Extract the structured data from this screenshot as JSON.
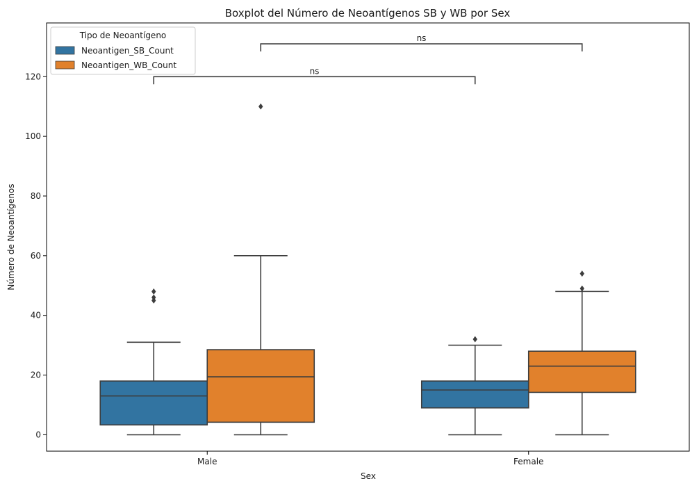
{
  "chart_data": {
    "type": "boxplot",
    "title": "Boxplot del Número de Neoantígenos SB y WB por Sex",
    "xlabel": "Sex",
    "ylabel": "Número de Neoantígenos",
    "categories": [
      "Male",
      "Female"
    ],
    "ylim": [
      -5.5,
      138
    ],
    "yticks": [
      0,
      20,
      40,
      60,
      80,
      100,
      120
    ],
    "grid": false,
    "legend": {
      "title": "Tipo de Neoantígeno",
      "placement": "top-left",
      "entries": [
        "Neoantigen_SB_Count",
        "Neoantigen_WB_Count"
      ]
    },
    "colors": {
      "Neoantigen_SB_Count": "#3274a1",
      "Neoantigen_WB_Count": "#e1812c",
      "lines": "#3d3d3d"
    },
    "series": [
      {
        "name": "Neoantigen_SB_Count",
        "boxes": [
          {
            "category": "Male",
            "whisker_low": 0,
            "q1": 3.3,
            "median": 13,
            "q3": 18,
            "whisker_high": 31,
            "outliers": [
              45,
              46,
              48
            ]
          },
          {
            "category": "Female",
            "whisker_low": 0,
            "q1": 9,
            "median": 15,
            "q3": 18,
            "whisker_high": 30,
            "outliers": [
              32
            ]
          }
        ]
      },
      {
        "name": "Neoantigen_WB_Count",
        "boxes": [
          {
            "category": "Male",
            "whisker_low": 0,
            "q1": 4.2,
            "median": 19.4,
            "q3": 28.5,
            "whisker_high": 60,
            "outliers": [
              110
            ]
          },
          {
            "category": "Female",
            "whisker_low": 0,
            "q1": 14.2,
            "median": 23,
            "q3": 28,
            "whisker_high": 48,
            "outliers": [
              49,
              54
            ]
          }
        ]
      }
    ],
    "annotations": [
      {
        "text": "ns",
        "from": {
          "category": "Male",
          "series": "Neoantigen_SB_Count"
        },
        "to": {
          "category": "Female",
          "series": "Neoantigen_SB_Count"
        },
        "y": 120
      },
      {
        "text": "ns",
        "from": {
          "category": "Male",
          "series": "Neoantigen_WB_Count"
        },
        "to": {
          "category": "Female",
          "series": "Neoantigen_WB_Count"
        },
        "y": 131
      }
    ]
  }
}
